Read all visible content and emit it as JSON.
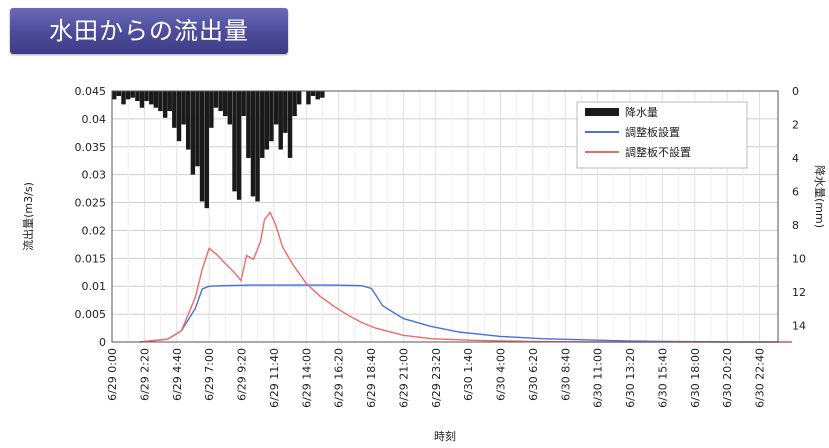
{
  "page": {
    "title": "水田からの流出量"
  },
  "chart_data": {
    "type": "line",
    "xlabel": "時刻",
    "ylabel_left": "流出量(m3/s)",
    "ylabel_right": "降水量(mm)",
    "ylim_left": [
      0,
      0.045
    ],
    "yticks_left": [
      "0",
      "0.005",
      "0.01",
      "0.015",
      "0.02",
      "0.025",
      "0.03",
      "0.035",
      "0.04",
      "0.045"
    ],
    "ylim_right_inverted": [
      0,
      15
    ],
    "yticks_right": [
      "0",
      "2",
      "4",
      "6",
      "8",
      "10",
      "12",
      "14"
    ],
    "x_tick_labels": [
      "6/29 0:00",
      "6/29 2:20",
      "6/29 4:40",
      "6/29 7:00",
      "6/29 9:20",
      "6/29 11:40",
      "6/29 14:00",
      "6/29 16:20",
      "6/29 18:40",
      "6/29 21:00",
      "6/29 23:20",
      "6/30 1:40",
      "6/30 4:00",
      "6/30 6:20",
      "6/30 8:40",
      "6/30 11:00",
      "6/30 13:20",
      "6/30 15:40",
      "6/30 18:00",
      "6/30 20:20",
      "6/30 22:40"
    ],
    "legend": {
      "position": "top-right",
      "entries": [
        "降水量",
        "調整板設置",
        "調整板不設置"
      ]
    },
    "grid": true,
    "series": [
      {
        "name": "降水量",
        "kind": "bar",
        "axis": "right",
        "color": "#1a1a1a",
        "x_hours": [
          0.0,
          0.33,
          0.67,
          1.0,
          1.33,
          1.67,
          2.0,
          2.33,
          2.67,
          3.0,
          3.33,
          3.67,
          4.0,
          4.33,
          4.67,
          5.0,
          5.33,
          5.67,
          6.0,
          6.33,
          6.67,
          7.0,
          7.33,
          7.67,
          8.0,
          8.33,
          8.67,
          9.0,
          9.33,
          9.67,
          10.0,
          10.33,
          10.67,
          11.0,
          11.33,
          11.67,
          12.0,
          12.33,
          12.67,
          13.0,
          13.33,
          14.0,
          14.33,
          14.67,
          15.0
        ],
        "values": [
          0.5,
          0.3,
          0.8,
          0.5,
          0.4,
          0.6,
          1.0,
          0.6,
          0.8,
          1.0,
          1.2,
          1.6,
          1.2,
          2.2,
          3.0,
          2.0,
          3.5,
          5.0,
          4.5,
          6.6,
          7.0,
          2.2,
          1.0,
          1.2,
          1.5,
          2.0,
          6.0,
          6.5,
          1.5,
          4.0,
          6.3,
          6.6,
          4.0,
          3.5,
          3.0,
          2.0,
          3.5,
          2.5,
          4.0,
          1.5,
          0.8,
          0.8,
          0.3,
          0.5,
          0.4
        ]
      },
      {
        "name": "調整板設置",
        "kind": "line",
        "axis": "left",
        "color": "#4a6fe0",
        "x_hours": [
          2,
          4,
          5,
          6,
          6.5,
          7,
          8,
          10,
          12,
          14,
          16,
          18,
          18.7,
          19.5,
          21,
          23,
          25,
          28,
          31,
          34,
          37,
          40,
          45,
          49
        ],
        "values": [
          0,
          0.0005,
          0.002,
          0.006,
          0.0095,
          0.01,
          0.0101,
          0.0102,
          0.0102,
          0.0102,
          0.0102,
          0.0101,
          0.0096,
          0.0065,
          0.0042,
          0.0028,
          0.0018,
          0.001,
          0.0006,
          0.0004,
          0.0002,
          0.0001,
          0,
          0
        ]
      },
      {
        "name": "調整板不設置",
        "kind": "line",
        "axis": "left",
        "color": "#ee6b6b",
        "x_hours": [
          2,
          4,
          5,
          6,
          6.5,
          7,
          7.5,
          8,
          8.8,
          9.3,
          9.7,
          10.2,
          10.7,
          11,
          11.4,
          11.8,
          12.3,
          13,
          14,
          15,
          16,
          17,
          18,
          19,
          21,
          23,
          26,
          30,
          35,
          40,
          45,
          49
        ],
        "values": [
          0,
          0.0005,
          0.002,
          0.008,
          0.013,
          0.0168,
          0.0158,
          0.0145,
          0.0125,
          0.011,
          0.0155,
          0.0148,
          0.018,
          0.022,
          0.0232,
          0.021,
          0.017,
          0.014,
          0.0105,
          0.0082,
          0.0064,
          0.0048,
          0.0035,
          0.0025,
          0.0012,
          0.0006,
          0.0003,
          0.0001,
          0,
          0,
          0,
          0
        ]
      }
    ]
  }
}
